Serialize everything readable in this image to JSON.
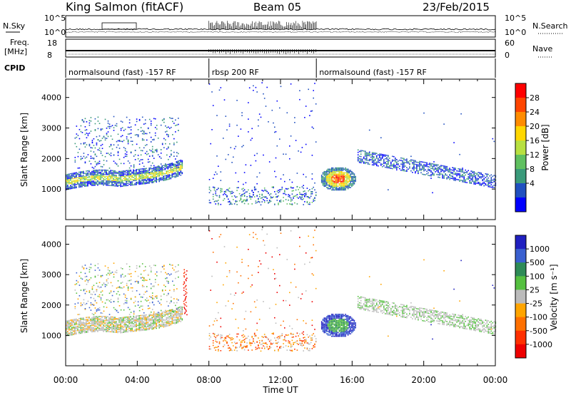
{
  "header": {
    "station": "King Salmon (fitACF)",
    "beam": "Beam 05",
    "date": "23/Feb/2015"
  },
  "side_labels": {
    "nsky": "N.Sky",
    "freq": "Freq.",
    "freq_unit": "[MHz]",
    "cpid": "CPID",
    "nsearch": "N.Search",
    "nave": "Nave"
  },
  "noise_panel": {
    "left_ticks": [
      "10^5",
      "10^0"
    ],
    "right_ticks": [
      "10^5",
      "10^0"
    ]
  },
  "freq_panel": {
    "left_ticks": [
      "18",
      "8"
    ],
    "right_ticks": [
      "60",
      "0"
    ]
  },
  "cpid_segments": [
    {
      "label": "normalsound (fast) -157 RF",
      "start_hr": 0.0
    },
    {
      "label": "rbsp 200 RF",
      "start_hr": 8.0
    },
    {
      "label": "normalsound (fast) -157 RF",
      "start_hr": 14.0
    }
  ],
  "chart_data": [
    {
      "type": "heatmap",
      "name": "power",
      "xlabel": "Time UT",
      "ylabel": "Slant Range [km]",
      "xlim": [
        0,
        24
      ],
      "ylim": [
        0,
        4600
      ],
      "x_ticks": [
        "00:00",
        "04:00",
        "08:00",
        "12:00",
        "16:00",
        "20:00",
        "00:00"
      ],
      "y_ticks": [
        1000,
        2000,
        3000,
        4000
      ],
      "colorbar_label": "Power [dB]",
      "colorbar_ticks": [
        "28",
        "24",
        "20",
        "16",
        "12",
        "8",
        "4"
      ],
      "colorbar_colors": [
        "#ff0000",
        "#ff4500",
        "#ff8c00",
        "#ffd700",
        "#b8e040",
        "#60c060",
        "#3a9a7a",
        "#2050c0",
        "#0000ff"
      ]
    },
    {
      "type": "heatmap",
      "name": "velocity",
      "xlabel": "Time UT",
      "ylabel": "Slant Range [km]",
      "xlim": [
        0,
        24
      ],
      "ylim": [
        0,
        4600
      ],
      "x_ticks": [
        "00:00",
        "04:00",
        "08:00",
        "12:00",
        "16:00",
        "20:00",
        "00:00"
      ],
      "y_ticks": [
        1000,
        2000,
        3000,
        4000
      ],
      "colorbar_label": "Velocity [m s⁻¹]",
      "colorbar_ticks": [
        "1000",
        "500",
        "100",
        "25",
        "-25",
        "-100",
        "-500",
        "-1000"
      ],
      "colorbar_colors": [
        "#2020c0",
        "#3a60d0",
        "#2e8b57",
        "#55c040",
        "#bbbbbb",
        "#ffa500",
        "#ff7000",
        "#ff3000",
        "#ee0000"
      ]
    }
  ]
}
